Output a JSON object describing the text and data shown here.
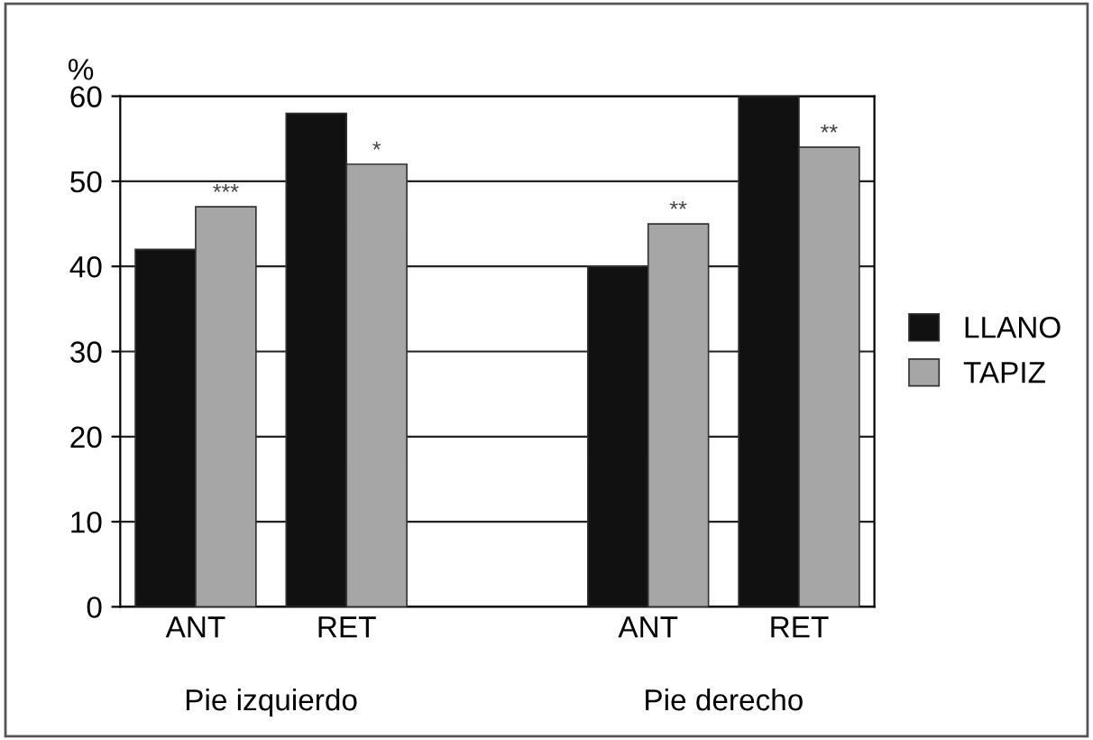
{
  "chart_data": {
    "type": "bar",
    "ylabel": "%",
    "categories": [
      "ANT",
      "RET",
      null,
      "ANT",
      "RET"
    ],
    "series": [
      {
        "name": "LLANO",
        "color": "#111111",
        "values": [
          42,
          58,
          null,
          40,
          60
        ]
      },
      {
        "name": "TAPIZ",
        "color": "#a6a6a6",
        "values": [
          47,
          52,
          null,
          45,
          54
        ],
        "value_labels": [
          "***",
          "*",
          null,
          "**",
          "**"
        ]
      }
    ],
    "annotations": [
      "Pie izquierdo",
      "Pie derecho"
    ],
    "ylim": [
      0,
      60
    ],
    "yticks": [
      0,
      10,
      20,
      30,
      40,
      50,
      60
    ],
    "grid": "y",
    "legend": "right"
  }
}
